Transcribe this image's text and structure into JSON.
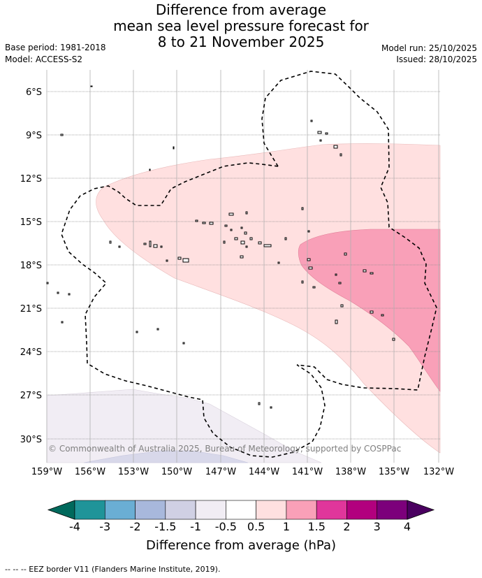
{
  "title": {
    "line1": "Difference from average",
    "line2": "mean sea level pressure forecast for",
    "line3": "8 to 21 November 2025"
  },
  "meta": {
    "base_period": "Base period: 1981-2018",
    "model": "Model: ACCESS-S2",
    "model_run": "Model run: 25/10/2025",
    "issued": "Issued: 28/10/2025"
  },
  "map": {
    "lat_labels": [
      "6°S",
      "9°S",
      "12°S",
      "15°S",
      "18°S",
      "21°S",
      "24°S",
      "27°S",
      "30°S"
    ],
    "lon_labels": [
      "159°W",
      "156°W",
      "153°W",
      "150°W",
      "147°W",
      "144°W",
      "141°W",
      "138°W",
      "135°W",
      "132°W"
    ],
    "copyright": "© Commonwealth of Australia 2025, Bureau of Meteorology, supported by COSPPac"
  },
  "colorbar": {
    "labels": [
      "-4",
      "-3",
      "-2",
      "-1.5",
      "-1",
      "-0.5",
      "0.5",
      "1",
      "1.5",
      "2",
      "3",
      "4"
    ],
    "colors": [
      "#1f9499",
      "#6aaed4",
      "#a8b8dc",
      "#d0d0e4",
      "#f1edf4",
      "#ffffff",
      "#ffe0e0",
      "#f9a0b8",
      "#e0369b",
      "#b2007e",
      "#7c007b"
    ],
    "low_color": "#00695c",
    "high_color": "#4a0060",
    "title": "Difference from average (hPa)"
  },
  "footnote": "--  --  -- EEZ border V11 (Flanders Marine Institute, 2019)."
}
